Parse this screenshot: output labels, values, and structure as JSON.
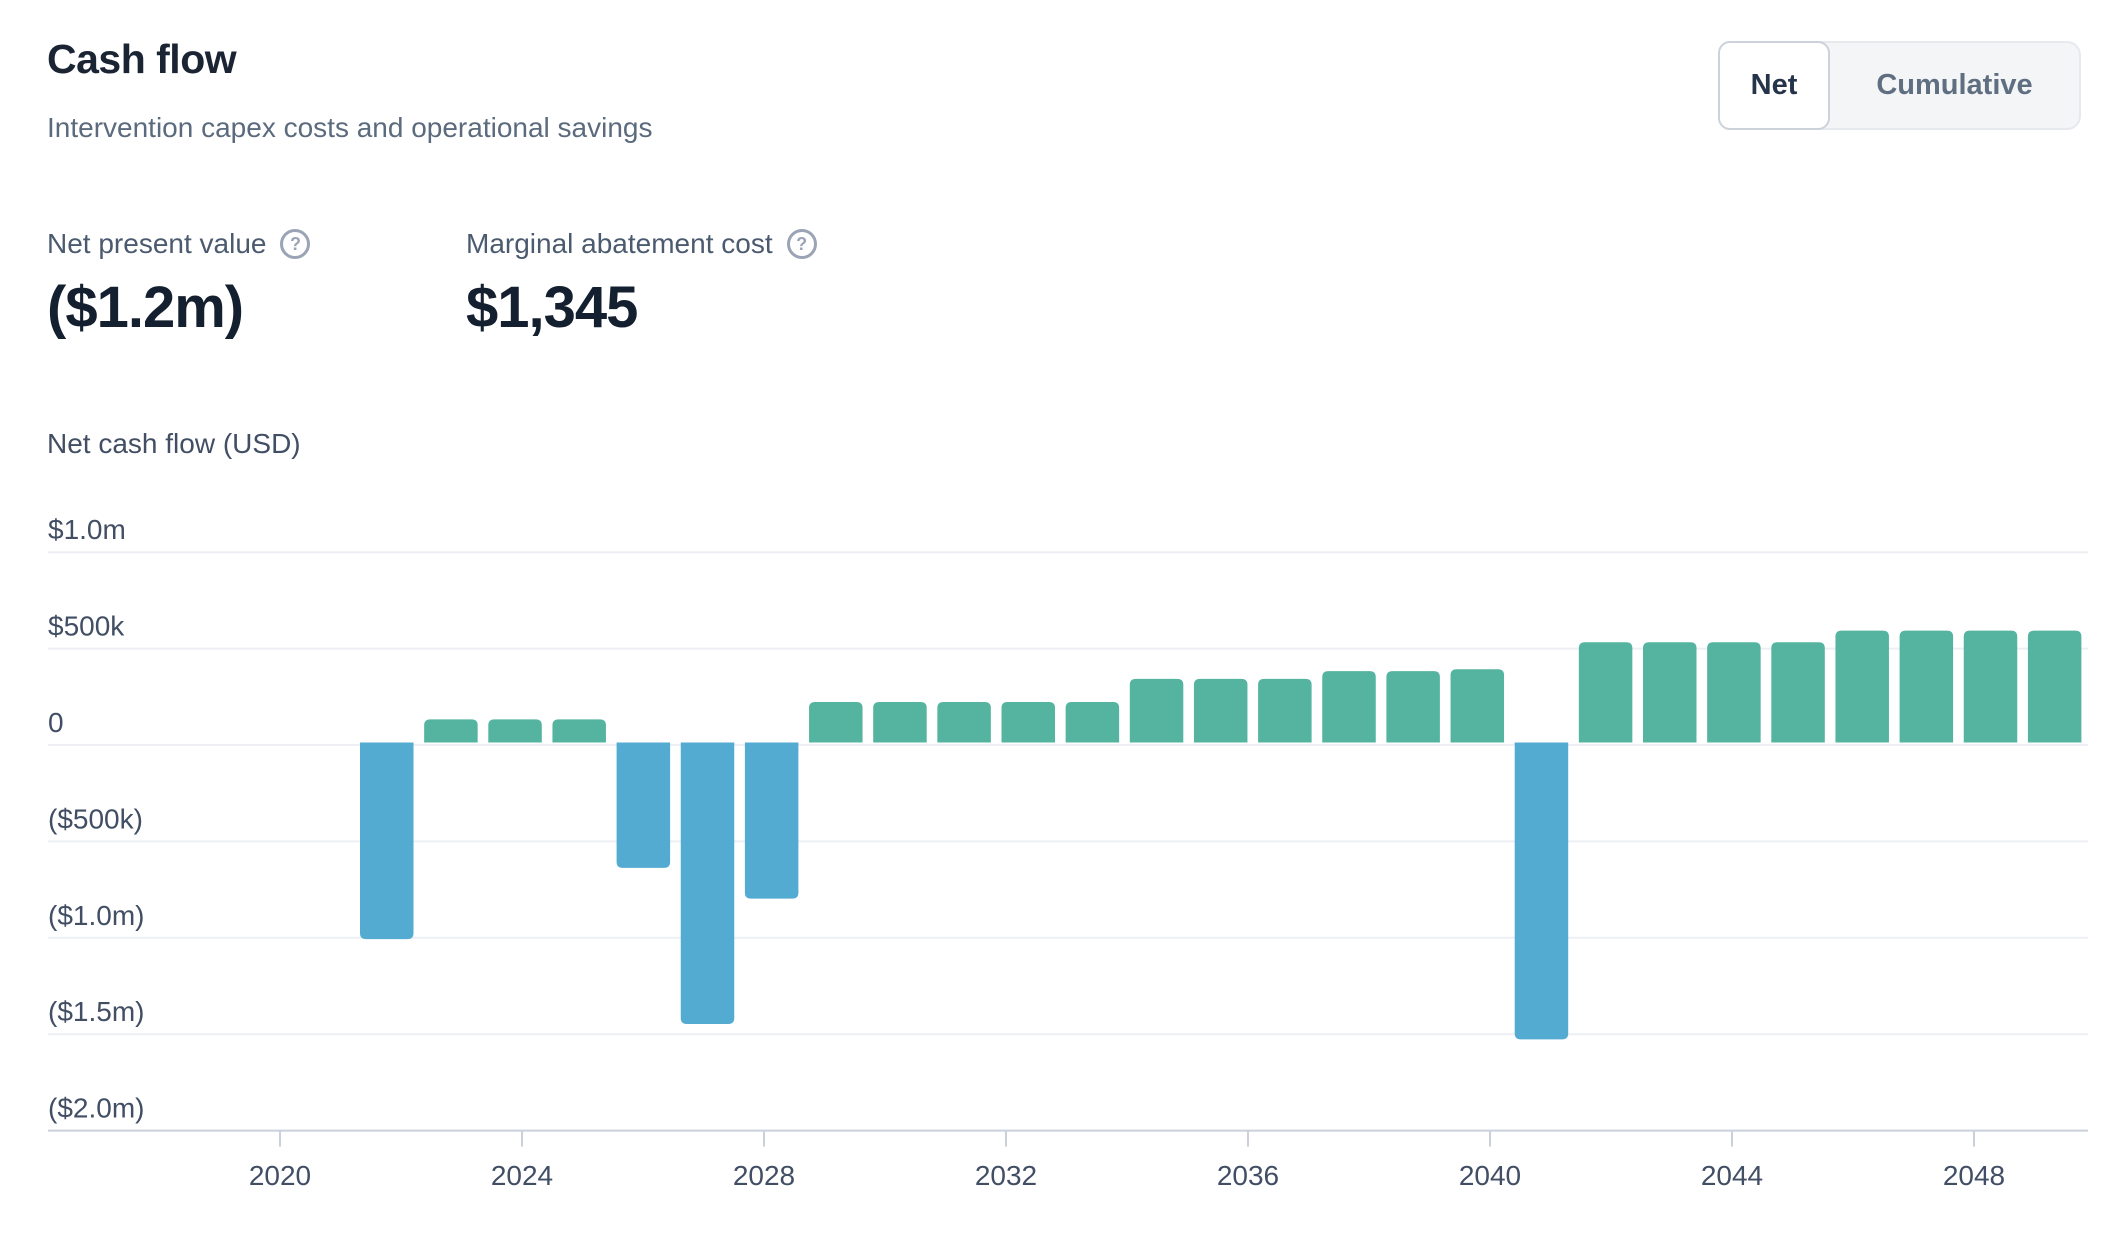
{
  "header": {
    "title": "Cash flow",
    "subtitle": "Intervention capex costs and operational savings"
  },
  "toggle": {
    "options": [
      {
        "label": "Net",
        "active": true
      },
      {
        "label": "Cumulative",
        "active": false
      }
    ]
  },
  "metrics": [
    {
      "label": "Net present value",
      "value": "($1.2m)",
      "help_icon": "question-circle"
    },
    {
      "label": "Marginal abatement cost",
      "value": "$1,345",
      "help_icon": "question-circle"
    }
  ],
  "chart_data": {
    "type": "bar",
    "title": "Net cash flow (USD)",
    "xlabel": "",
    "ylabel": "Net cash flow (USD)",
    "grid": true,
    "legend": "none",
    "ylim": [
      -2000000,
      1250000
    ],
    "x": [
      2022,
      2023,
      2024,
      2025,
      2026,
      2027,
      2028,
      2029,
      2030,
      2031,
      2032,
      2033,
      2034,
      2035,
      2036,
      2037,
      2038,
      2039,
      2040,
      2041,
      2042,
      2043,
      2044,
      2045,
      2046,
      2047,
      2048
    ],
    "values": [
      -1020000,
      120000,
      120000,
      120000,
      -650000,
      -1460000,
      -810000,
      210000,
      210000,
      210000,
      210000,
      210000,
      330000,
      330000,
      330000,
      370000,
      370000,
      380000,
      -1540000,
      520000,
      520000,
      520000,
      520000,
      580000,
      580000,
      580000,
      580000
    ],
    "colors": {
      "positive": "#55b4a0",
      "negative": "#54abd2"
    },
    "y_ticks": [
      {
        "label": "$1.0m",
        "value": 1000000
      },
      {
        "label": "$500k",
        "value": 500000
      },
      {
        "label": "0",
        "value": 0
      },
      {
        "label": "($500k)",
        "value": -500000
      },
      {
        "label": "($1.0m)",
        "value": -1000000
      },
      {
        "label": "($1.5m)",
        "value": -1500000
      },
      {
        "label": "($2.0m)",
        "value": -2000000
      }
    ],
    "x_ticks": [
      {
        "label": "2020",
        "year": 2020
      },
      {
        "label": "2024",
        "year": 2024
      },
      {
        "label": "2028",
        "year": 2028
      },
      {
        "label": "2032",
        "year": 2032
      },
      {
        "label": "2036",
        "year": 2036
      },
      {
        "label": "2040",
        "year": 2040
      },
      {
        "label": "2044",
        "year": 2044
      },
      {
        "label": "2048",
        "year": 2048
      }
    ]
  }
}
